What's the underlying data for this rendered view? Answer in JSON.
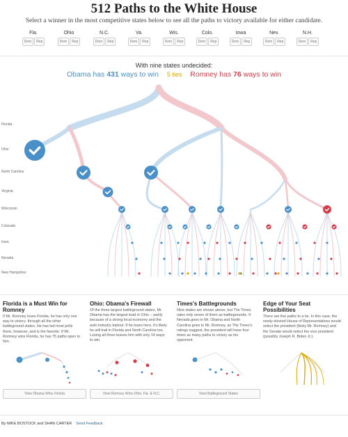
{
  "header": {
    "title": "512 Paths to the White House",
    "subtitle": "Select a winner in the most competitive states below to see all the paths to victory available for either candidate."
  },
  "states": [
    {
      "name": "Fla."
    },
    {
      "name": "Ohio"
    },
    {
      "name": "N.C."
    },
    {
      "name": "Va."
    },
    {
      "name": "Wis."
    },
    {
      "name": "Colo."
    },
    {
      "name": "Iowa"
    },
    {
      "name": "Nev."
    },
    {
      "name": "N.H."
    }
  ],
  "pick_labels": {
    "dem": "Dem",
    "rep": "Rep"
  },
  "summary": {
    "undecided": "With nine states undecided:",
    "obama_prefix": "Obama has ",
    "obama_count": "431",
    "obama_suffix": " ways to win",
    "ties": "5 ties",
    "romney_prefix": "Romney has ",
    "romney_count": "76",
    "romney_suffix": " ways to win"
  },
  "tree_rows": [
    "Florida",
    "Ohio",
    "North Carolina",
    "Virginia",
    "Wisconsin",
    "Colorado",
    "Iowa",
    "Nevada",
    "New Hampshire"
  ],
  "colors": {
    "obama": "#4a90c8",
    "obama_light": "#c5dcef",
    "romney": "#d43c4a",
    "romney_light": "#f2c8cd",
    "tie": "#e0a800"
  },
  "panels": [
    {
      "title": "Florida is a Must Win for Romney",
      "body": "If Mr. Romney loses Florida, he has only one way to victory: through all the other battleground states. He has led most polls there, however, and is the favorite. If Mr. Romney wins Florida, he has 75 paths open to him.",
      "button": "View Obama Wins Florida"
    },
    {
      "title": "Ohio: Obama's Firewall",
      "body": "Of the three largest battleground states, Mr. Obama has the largest lead in Ohio -- partly because of a strong local economy and the auto industry bailout. If he loses here, it's likely he will trail in Florida and North Carolina too. Losing all three leaves him with only 14 ways to win.",
      "button": "View Romney Wins Ohio, Fla. & N.C."
    },
    {
      "title": "Times's Battlegrounds",
      "body": "Nine states are shown above, but The Times rates only seven of them as battlegrounds. If Nevada goes to Mr. Obama and North Carolina goes to Mr. Romney, as The Times's ratings suggest, the president will have four times as many paths to victory as his opponent.",
      "button": "View Battleground States"
    },
    {
      "title": "Edge of Your Seat Possibilities",
      "body": "There are five paths to a tie. In this case, the newly elected House of Representatives would select the president (likely Mr. Romney) and the Senate would select the vice president (possibly Joseph R. Biden Jr.).",
      "button": ""
    }
  ],
  "footer": {
    "byline": "By MIKE BOSTOCK and SHAN CARTER",
    "feedback": "Send Feedback"
  }
}
